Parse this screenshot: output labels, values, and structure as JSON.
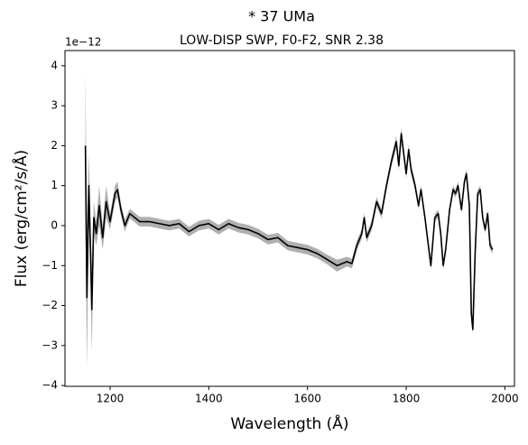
{
  "chart_data": {
    "type": "line",
    "title": "*  37 UMa",
    "subtitle": "LOW-DISP SWP, F0-F2, SNR 2.38",
    "xlabel": "Wavelength (Å)",
    "ylabel": "Flux (erg/cm²/s/Å)",
    "y_offset_label": "1e−12",
    "xlim": [
      1108.6,
      2019.4
    ],
    "ylim": [
      -4.02,
      4.38
    ],
    "xticks": [
      1200,
      1400,
      1600,
      1800,
      2000
    ],
    "yticks": [
      {
        "value": -4,
        "label": "−4"
      },
      {
        "value": -3,
        "label": "−3"
      },
      {
        "value": -2,
        "label": "−2"
      },
      {
        "value": -1,
        "label": "−1"
      },
      0,
      1,
      2,
      3,
      4
    ],
    "grid": false,
    "x": [
      1150,
      1153,
      1157,
      1160,
      1163,
      1167,
      1172,
      1178,
      1185,
      1192,
      1200,
      1210,
      1215,
      1222,
      1230,
      1240,
      1260,
      1280,
      1300,
      1320,
      1340,
      1360,
      1380,
      1400,
      1420,
      1440,
      1460,
      1480,
      1500,
      1520,
      1540,
      1560,
      1580,
      1600,
      1620,
      1640,
      1660,
      1680,
      1690,
      1700,
      1710,
      1715,
      1720,
      1730,
      1740,
      1750,
      1760,
      1770,
      1780,
      1785,
      1790,
      1795,
      1800,
      1805,
      1810,
      1818,
      1825,
      1830,
      1838,
      1845,
      1850,
      1858,
      1865,
      1870,
      1875,
      1880,
      1888,
      1895,
      1900,
      1905,
      1912,
      1918,
      1922,
      1928,
      1932,
      1935,
      1940,
      1945,
      1950,
      1955,
      1960,
      1965,
      1970,
      1975
    ],
    "series": [
      {
        "color": "#000000",
        "band_color": "#b0b0b0",
        "values": [
          2.0,
          -1.8,
          1.0,
          -0.5,
          -2.1,
          0.2,
          -0.2,
          0.5,
          -0.3,
          0.6,
          0.1,
          0.8,
          0.9,
          0.4,
          0.0,
          0.3,
          0.1,
          0.1,
          0.05,
          0.0,
          0.05,
          -0.15,
          0.0,
          0.05,
          -0.1,
          0.05,
          -0.05,
          -0.1,
          -0.2,
          -0.35,
          -0.3,
          -0.5,
          -0.55,
          -0.6,
          -0.7,
          -0.85,
          -1.0,
          -0.9,
          -0.95,
          -0.5,
          -0.2,
          0.2,
          -0.3,
          0.0,
          0.6,
          0.3,
          1.0,
          1.6,
          2.1,
          1.5,
          2.3,
          1.8,
          1.3,
          1.9,
          1.4,
          1.0,
          0.5,
          0.9,
          0.2,
          -0.5,
          -1.0,
          0.2,
          0.3,
          -0.2,
          -1.0,
          -0.6,
          0.4,
          0.9,
          0.8,
          1.0,
          0.4,
          1.1,
          1.3,
          0.5,
          -2.2,
          -2.6,
          -0.6,
          0.8,
          0.9,
          0.2,
          -0.1,
          0.3,
          -0.5,
          -0.6
        ],
        "errors": [
          1.9,
          1.8,
          0.8,
          0.6,
          1.1,
          0.4,
          0.3,
          0.5,
          0.3,
          0.4,
          0.2,
          0.2,
          0.2,
          0.15,
          0.15,
          0.12,
          0.12,
          0.12,
          0.12,
          0.12,
          0.12,
          0.12,
          0.12,
          0.12,
          0.12,
          0.12,
          0.12,
          0.12,
          0.12,
          0.12,
          0.12,
          0.12,
          0.12,
          0.12,
          0.12,
          0.12,
          0.15,
          0.12,
          0.12,
          0.12,
          0.12,
          0.12,
          0.12,
          0.12,
          0.12,
          0.12,
          0.12,
          0.12,
          0.15,
          0.12,
          0.15,
          0.12,
          0.12,
          0.12,
          0.12,
          0.12,
          0.1,
          0.1,
          0.1,
          0.1,
          0.1,
          0.1,
          0.1,
          0.1,
          0.1,
          0.1,
          0.1,
          0.1,
          0.1,
          0.1,
          0.1,
          0.1,
          0.1,
          0.1,
          0.1,
          0.1,
          0.1,
          0.1,
          0.1,
          0.1,
          0.1,
          0.1,
          0.1,
          0.1
        ]
      }
    ]
  }
}
